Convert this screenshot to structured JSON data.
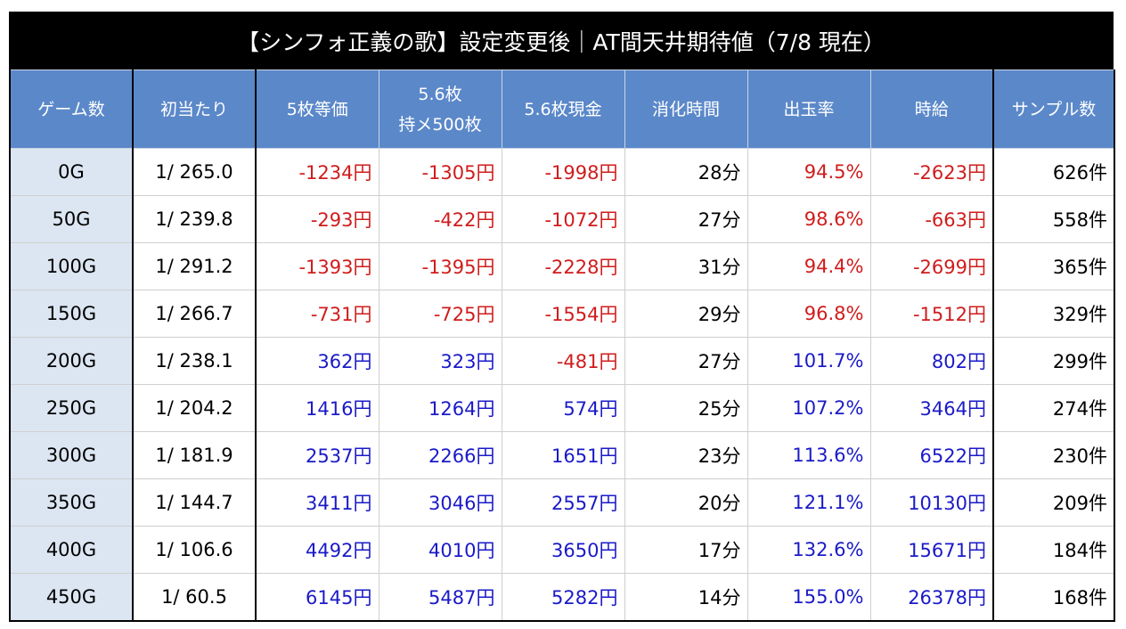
{
  "title": "【シンフォ正義の歌】設定変更後｜AT間天井期待値（7/8 現在）",
  "headers": [
    "ゲーム数",
    "初当たり",
    "5枚等価",
    "5.6枚\n持メ500枚",
    "5.6枚現金",
    "消化時間",
    "出玉率",
    "時給",
    "サンプル数"
  ],
  "rows": [
    [
      "0G",
      "1/ 265.0",
      "-1234円",
      "-1305円",
      "-1998円",
      "28分",
      "94.5%",
      "-2623円",
      "626件"
    ],
    [
      "50G",
      "1/ 239.8",
      "-293円",
      "-422円",
      "-1072円",
      "27分",
      "98.6%",
      "-663円",
      "558件"
    ],
    [
      "100G",
      "1/ 291.2",
      "-1393円",
      "-1395円",
      "-2228円",
      "31分",
      "94.4%",
      "-2699円",
      "365件"
    ],
    [
      "150G",
      "1/ 266.7",
      "-731円",
      "-725円",
      "-1554円",
      "29分",
      "96.8%",
      "-1512円",
      "329件"
    ],
    [
      "200G",
      "1/ 238.1",
      "362円",
      "323円",
      "-481円",
      "27分",
      "101.7%",
      "802円",
      "299件"
    ],
    [
      "250G",
      "1/ 204.2",
      "1416円",
      "1264円",
      "574円",
      "25分",
      "107.2%",
      "3464円",
      "274件"
    ],
    [
      "300G",
      "1/ 181.9",
      "2537円",
      "2266円",
      "1651円",
      "23分",
      "113.6%",
      "6522円",
      "230件"
    ],
    [
      "350G",
      "1/ 144.7",
      "3411円",
      "3046円",
      "2557円",
      "20分",
      "121.1%",
      "10130円",
      "209件"
    ],
    [
      "400G",
      "1/ 106.6",
      "4492円",
      "4010円",
      "3650円",
      "17分",
      "132.6%",
      "15671円",
      "184件"
    ],
    [
      "450G",
      "1/ 60.5",
      "6145円",
      "5487円",
      "5282円",
      "14分",
      "155.0%",
      "26378円",
      "168件"
    ]
  ],
  "colors": {
    "title_bg": "#000000",
    "header_bg": "#5b88c9",
    "first_col_bg": "#dce6f2",
    "negative": "#d01c1c",
    "positive": "#1a1ac8"
  }
}
